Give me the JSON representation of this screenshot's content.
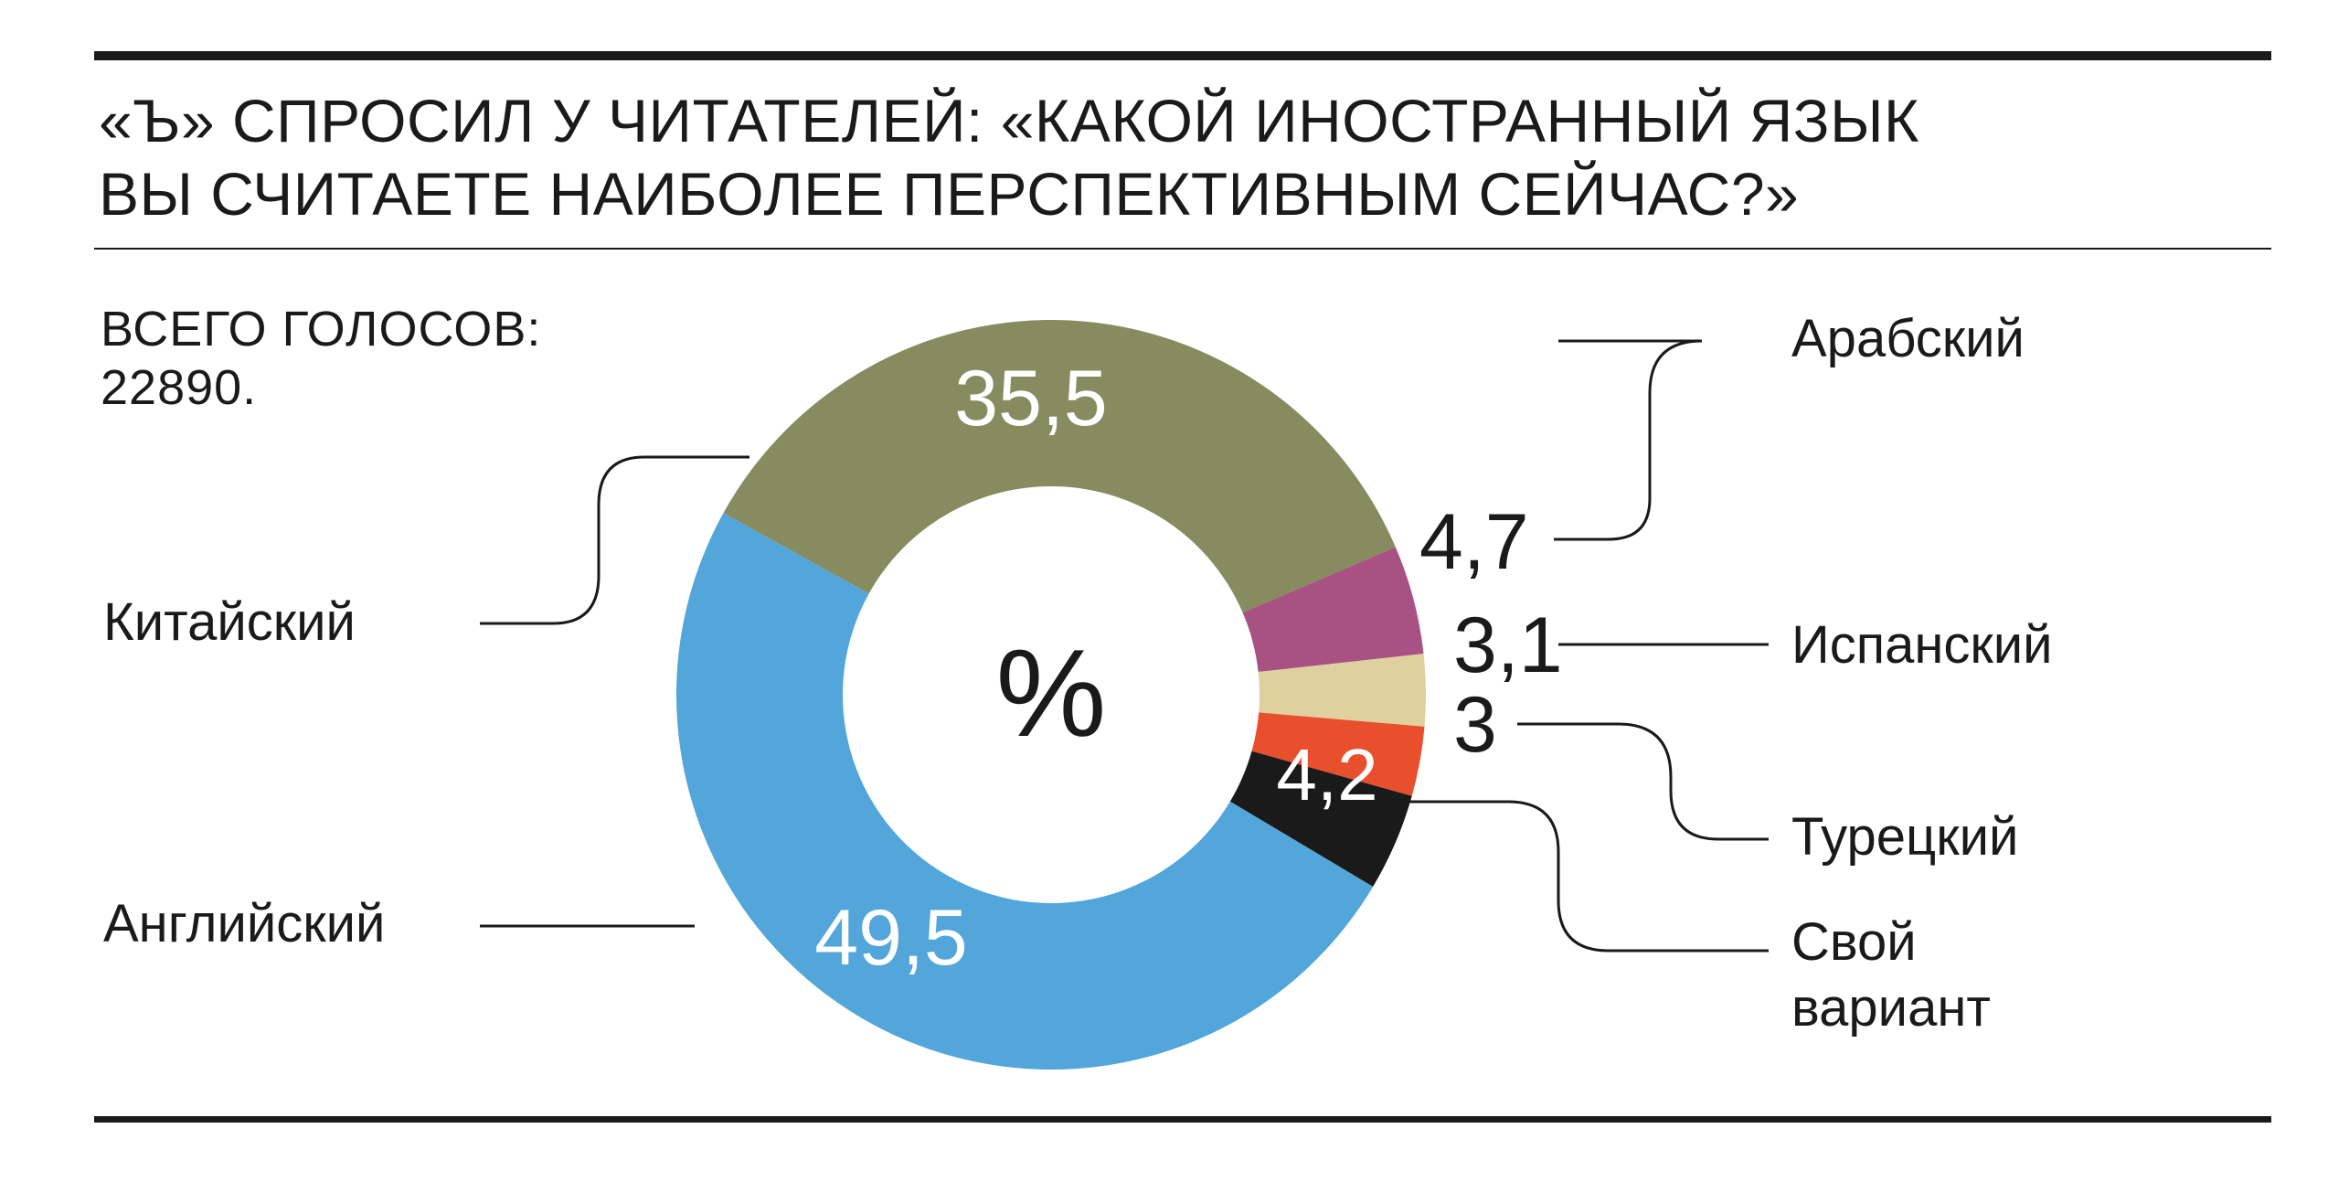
{
  "title_lines": [
    "«Ъ» СПРОСИЛ У ЧИТАТЕЛЕЙ: «КАКОЙ ИНОСТРАННЫЙ ЯЗЫК",
    "ВЫ СЧИТАЕТЕ НАИБОЛЕЕ ПЕРСПЕКТИВНЫМ СЕЙЧАС?»"
  ],
  "total_lines": [
    "ВСЕГО ГОЛОСОВ:",
    "22890."
  ],
  "chart_data": {
    "type": "pie",
    "style": "donut",
    "unit": "%",
    "total_votes": 22890,
    "slices": [
      {
        "category": "Китайский",
        "value": 35.5,
        "value_label": "35,5",
        "color": "#878c60"
      },
      {
        "category": "Арабский",
        "value": 4.7,
        "value_label": "4,7",
        "color": "#a85283"
      },
      {
        "category": "Испанский",
        "value": 3.1,
        "value_label": "3,1",
        "color": "#dfd19f"
      },
      {
        "category": "Турецкий",
        "value": 3.0,
        "value_label": "3",
        "color": "#e8502d"
      },
      {
        "category": "Свой вариант",
        "value": 4.2,
        "value_label": "4,2",
        "color": "#1a1a1a",
        "category_lines": [
          "Свой",
          "вариант"
        ]
      },
      {
        "category": "Английский",
        "value": 49.5,
        "value_label": "49,5",
        "color": "#52a6d9"
      }
    ]
  }
}
